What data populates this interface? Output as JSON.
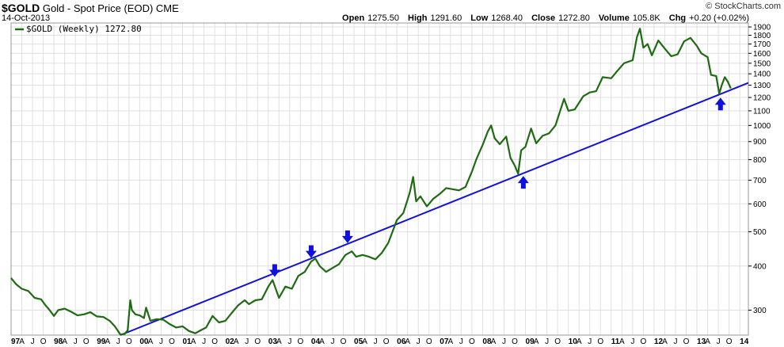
{
  "header": {
    "symbol": "$GOLD",
    "name": "Gold - Spot Price (EOD)",
    "exchange": "CME",
    "date": "14-Oct-2013",
    "logo": "© StockCharts.com",
    "open_label": "Open",
    "open": "1275.50",
    "high_label": "High",
    "high": "1291.60",
    "low_label": "Low",
    "low": "1268.40",
    "close_label": "Close",
    "close": "1272.80",
    "volume_label": "Volume",
    "volume": "105.8K",
    "chg_label": "Chg",
    "chg": "+0.20 (+0.02%)"
  },
  "legend": {
    "label": "$GOLD (Weekly) 1272.80"
  },
  "colors": {
    "price": "#1e6b12",
    "trendline": "#1010e0",
    "arrow": "#1010e0",
    "grid": "#e0e0e0"
  },
  "chart_data": {
    "type": "line",
    "scale": "log",
    "ylim": [
      255,
      1950
    ],
    "xlim": [
      1997.0,
      2014.2
    ],
    "grid": true,
    "legend_position": "top-left",
    "y_ticks": [
      300,
      400,
      500,
      600,
      700,
      800,
      900,
      1000,
      1100,
      1200,
      1300,
      1400,
      1500,
      1600,
      1700,
      1800,
      1900
    ],
    "x_ticks": [
      {
        "t": 1997.0,
        "label": "97"
      },
      {
        "t": 1997.25,
        "label": "A"
      },
      {
        "t": 1997.5,
        "label": "J"
      },
      {
        "t": 1997.75,
        "label": "O"
      },
      {
        "t": 1998.0,
        "label": "98"
      },
      {
        "t": 1998.25,
        "label": "A"
      },
      {
        "t": 1998.5,
        "label": "J"
      },
      {
        "t": 1998.75,
        "label": "O"
      },
      {
        "t": 1999.0,
        "label": "99"
      },
      {
        "t": 1999.25,
        "label": "A"
      },
      {
        "t": 1999.5,
        "label": "J"
      },
      {
        "t": 1999.75,
        "label": "O"
      },
      {
        "t": 2000.0,
        "label": "00"
      },
      {
        "t": 2000.25,
        "label": "A"
      },
      {
        "t": 2000.5,
        "label": "J"
      },
      {
        "t": 2000.75,
        "label": "O"
      },
      {
        "t": 2001.0,
        "label": "01"
      },
      {
        "t": 2001.25,
        "label": "A"
      },
      {
        "t": 2001.5,
        "label": "J"
      },
      {
        "t": 2001.75,
        "label": "O"
      },
      {
        "t": 2002.0,
        "label": "02"
      },
      {
        "t": 2002.25,
        "label": "A"
      },
      {
        "t": 2002.5,
        "label": "J"
      },
      {
        "t": 2002.75,
        "label": "O"
      },
      {
        "t": 2003.0,
        "label": "03"
      },
      {
        "t": 2003.25,
        "label": "A"
      },
      {
        "t": 2003.5,
        "label": "J"
      },
      {
        "t": 2003.75,
        "label": "O"
      },
      {
        "t": 2004.0,
        "label": "04"
      },
      {
        "t": 2004.25,
        "label": "A"
      },
      {
        "t": 2004.5,
        "label": "J"
      },
      {
        "t": 2004.75,
        "label": "O"
      },
      {
        "t": 2005.0,
        "label": "05"
      },
      {
        "t": 2005.25,
        "label": "A"
      },
      {
        "t": 2005.5,
        "label": "J"
      },
      {
        "t": 2005.75,
        "label": "O"
      },
      {
        "t": 2006.0,
        "label": "06"
      },
      {
        "t": 2006.25,
        "label": "A"
      },
      {
        "t": 2006.5,
        "label": "J"
      },
      {
        "t": 2006.75,
        "label": "O"
      },
      {
        "t": 2007.0,
        "label": "07"
      },
      {
        "t": 2007.25,
        "label": "A"
      },
      {
        "t": 2007.5,
        "label": "J"
      },
      {
        "t": 2007.75,
        "label": "O"
      },
      {
        "t": 2008.0,
        "label": "08"
      },
      {
        "t": 2008.25,
        "label": "A"
      },
      {
        "t": 2008.5,
        "label": "J"
      },
      {
        "t": 2008.75,
        "label": "O"
      },
      {
        "t": 2009.0,
        "label": "09"
      },
      {
        "t": 2009.25,
        "label": "A"
      },
      {
        "t": 2009.5,
        "label": "J"
      },
      {
        "t": 2009.75,
        "label": "O"
      },
      {
        "t": 2010.0,
        "label": "10"
      },
      {
        "t": 2010.25,
        "label": "A"
      },
      {
        "t": 2010.5,
        "label": "J"
      },
      {
        "t": 2010.75,
        "label": "O"
      },
      {
        "t": 2011.0,
        "label": "11"
      },
      {
        "t": 2011.25,
        "label": "A"
      },
      {
        "t": 2011.5,
        "label": "J"
      },
      {
        "t": 2011.75,
        "label": "O"
      },
      {
        "t": 2012.0,
        "label": "12"
      },
      {
        "t": 2012.25,
        "label": "A"
      },
      {
        "t": 2012.5,
        "label": "J"
      },
      {
        "t": 2012.75,
        "label": "O"
      },
      {
        "t": 2013.0,
        "label": "13"
      },
      {
        "t": 2013.25,
        "label": "A"
      },
      {
        "t": 2013.5,
        "label": "J"
      },
      {
        "t": 2013.75,
        "label": "O"
      },
      {
        "t": 2014.0,
        "label": "14"
      }
    ],
    "series": [
      {
        "name": "$GOLD (Weekly)",
        "points": [
          [
            1997.0,
            370
          ],
          [
            1997.12,
            355
          ],
          [
            1997.25,
            345
          ],
          [
            1997.4,
            340
          ],
          [
            1997.55,
            325
          ],
          [
            1997.7,
            322
          ],
          [
            1997.8,
            310
          ],
          [
            1997.9,
            300
          ],
          [
            1998.0,
            289
          ],
          [
            1998.1,
            300
          ],
          [
            1998.25,
            303
          ],
          [
            1998.4,
            297
          ],
          [
            1998.55,
            290
          ],
          [
            1998.7,
            292
          ],
          [
            1998.85,
            296
          ],
          [
            1999.0,
            288
          ],
          [
            1999.15,
            287
          ],
          [
            1999.3,
            280
          ],
          [
            1999.42,
            270
          ],
          [
            1999.55,
            256
          ],
          [
            1999.65,
            257
          ],
          [
            1999.72,
            263
          ],
          [
            1999.78,
            320
          ],
          [
            1999.82,
            300
          ],
          [
            1999.9,
            292
          ],
          [
            2000.0,
            290
          ],
          [
            2000.1,
            285
          ],
          [
            2000.15,
            305
          ],
          [
            2000.25,
            280
          ],
          [
            2000.4,
            283
          ],
          [
            2000.55,
            282
          ],
          [
            2000.7,
            274
          ],
          [
            2000.85,
            268
          ],
          [
            2001.0,
            270
          ],
          [
            2001.15,
            262
          ],
          [
            2001.3,
            258
          ],
          [
            2001.42,
            263
          ],
          [
            2001.55,
            268
          ],
          [
            2001.7,
            289
          ],
          [
            2001.85,
            277
          ],
          [
            2002.0,
            280
          ],
          [
            2002.15,
            295
          ],
          [
            2002.3,
            310
          ],
          [
            2002.45,
            320
          ],
          [
            2002.55,
            312
          ],
          [
            2002.7,
            320
          ],
          [
            2002.85,
            322
          ],
          [
            2003.0,
            350
          ],
          [
            2003.1,
            365
          ],
          [
            2003.25,
            325
          ],
          [
            2003.4,
            350
          ],
          [
            2003.55,
            345
          ],
          [
            2003.7,
            375
          ],
          [
            2003.85,
            385
          ],
          [
            2004.0,
            412
          ],
          [
            2004.1,
            420
          ],
          [
            2004.2,
            400
          ],
          [
            2004.35,
            385
          ],
          [
            2004.5,
            395
          ],
          [
            2004.65,
            405
          ],
          [
            2004.8,
            430
          ],
          [
            2004.95,
            440
          ],
          [
            2005.05,
            425
          ],
          [
            2005.2,
            430
          ],
          [
            2005.35,
            425
          ],
          [
            2005.5,
            418
          ],
          [
            2005.65,
            436
          ],
          [
            2005.8,
            465
          ],
          [
            2006.0,
            540
          ],
          [
            2006.15,
            565
          ],
          [
            2006.3,
            645
          ],
          [
            2006.38,
            715
          ],
          [
            2006.45,
            610
          ],
          [
            2006.55,
            630
          ],
          [
            2006.7,
            590
          ],
          [
            2006.85,
            620
          ],
          [
            2007.0,
            640
          ],
          [
            2007.15,
            665
          ],
          [
            2007.3,
            660
          ],
          [
            2007.45,
            655
          ],
          [
            2007.6,
            670
          ],
          [
            2007.75,
            740
          ],
          [
            2007.85,
            800
          ],
          [
            2008.0,
            880
          ],
          [
            2008.12,
            960
          ],
          [
            2008.2,
            1000
          ],
          [
            2008.28,
            920
          ],
          [
            2008.4,
            885
          ],
          [
            2008.55,
            930
          ],
          [
            2008.65,
            810
          ],
          [
            2008.75,
            770
          ],
          [
            2008.83,
            730
          ],
          [
            2008.9,
            850
          ],
          [
            2009.0,
            870
          ],
          [
            2009.13,
            980
          ],
          [
            2009.25,
            890
          ],
          [
            2009.4,
            935
          ],
          [
            2009.55,
            950
          ],
          [
            2009.7,
            1000
          ],
          [
            2009.9,
            1190
          ],
          [
            2010.0,
            1100
          ],
          [
            2010.15,
            1110
          ],
          [
            2010.35,
            1210
          ],
          [
            2010.5,
            1240
          ],
          [
            2010.65,
            1250
          ],
          [
            2010.8,
            1370
          ],
          [
            2011.0,
            1360
          ],
          [
            2011.15,
            1430
          ],
          [
            2011.3,
            1500
          ],
          [
            2011.5,
            1530
          ],
          [
            2011.6,
            1780
          ],
          [
            2011.67,
            1880
          ],
          [
            2011.75,
            1660
          ],
          [
            2011.85,
            1700
          ],
          [
            2011.95,
            1580
          ],
          [
            2012.1,
            1740
          ],
          [
            2012.25,
            1650
          ],
          [
            2012.4,
            1570
          ],
          [
            2012.55,
            1590
          ],
          [
            2012.7,
            1730
          ],
          [
            2012.85,
            1770
          ],
          [
            2013.0,
            1680
          ],
          [
            2013.1,
            1600
          ],
          [
            2013.25,
            1560
          ],
          [
            2013.33,
            1390
          ],
          [
            2013.45,
            1380
          ],
          [
            2013.52,
            1230
          ],
          [
            2013.58,
            1300
          ],
          [
            2013.65,
            1370
          ],
          [
            2013.72,
            1330
          ],
          [
            2013.79,
            1272.8
          ]
        ]
      }
    ],
    "trendline": {
      "from": [
        1999.55,
        255
      ],
      "to": [
        2014.2,
        1320
      ]
    },
    "markers": [
      {
        "type": "down-arrow",
        "t": 2003.15,
        "v": 365
      },
      {
        "type": "down-arrow",
        "t": 2004.0,
        "v": 413
      },
      {
        "type": "down-arrow",
        "t": 2004.85,
        "v": 455
      },
      {
        "type": "up-arrow",
        "t": 2008.95,
        "v": 738
      },
      {
        "type": "up-arrow",
        "t": 2013.55,
        "v": 1230
      }
    ]
  }
}
